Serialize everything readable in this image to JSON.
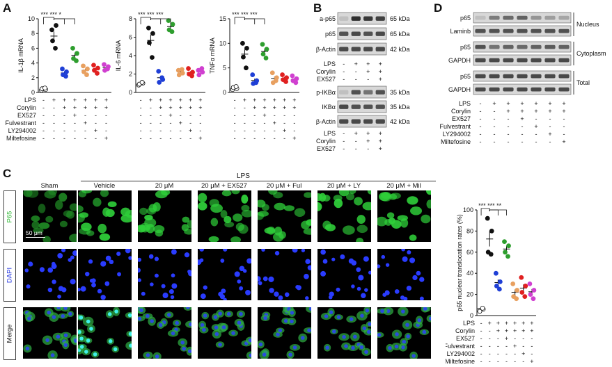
{
  "panels": {
    "A": "A",
    "B": "B",
    "C": "C",
    "D": "D"
  },
  "panelA": {
    "treat_rows": [
      "LPS",
      "Corylin",
      "EX527",
      "Fulvestrant",
      "LY294002",
      "Miltefosine"
    ],
    "treat_signs": [
      [
        "-",
        "+",
        "+",
        "+",
        "+",
        "+",
        "+"
      ],
      [
        "-",
        "-",
        "+",
        "+",
        "+",
        "+",
        "+"
      ],
      [
        "-",
        "-",
        "-",
        "+",
        "-",
        "-",
        "-"
      ],
      [
        "-",
        "-",
        "-",
        "-",
        "+",
        "-",
        "-"
      ],
      [
        "-",
        "-",
        "-",
        "-",
        "-",
        "+",
        "-"
      ],
      [
        "-",
        "-",
        "-",
        "-",
        "-",
        "-",
        "+"
      ]
    ],
    "charts": [
      {
        "ylabel": "IL-1β mRNA",
        "yticks": [
          "0",
          "2",
          "4",
          "6",
          "8",
          "10"
        ],
        "sig": "*** *** *"
      },
      {
        "ylabel": "IL-6 mRNA",
        "yticks": [
          "0",
          "2",
          "4",
          "6",
          "8"
        ],
        "sig": "*** *** ***"
      },
      {
        "ylabel": "TNFα mRNA",
        "yticks": [
          "0",
          "5",
          "10",
          "15"
        ],
        "sig": "*** *** ***"
      }
    ]
  },
  "chart_data": [
    {
      "type": "scatter",
      "ylabel": "IL-1β mRNA",
      "ylim": [
        0,
        10
      ],
      "series": [
        {
          "values": [
            0.3,
            0.4,
            0.5,
            0.6
          ],
          "color": "#ffffff"
        },
        {
          "values": [
            8.5,
            9.1,
            7.0,
            6.0
          ],
          "color": "#111111"
        },
        {
          "values": [
            3.2,
            2.8,
            2.4,
            2.2
          ],
          "color": "#1f3fd6"
        },
        {
          "values": [
            6.0,
            5.3,
            4.6,
            4.3
          ],
          "color": "#2e9e2e"
        },
        {
          "values": [
            3.6,
            3.2,
            2.8,
            2.4
          ],
          "color": "#e8a060"
        },
        {
          "values": [
            3.7,
            3.3,
            3.0,
            2.6
          ],
          "color": "#e02020"
        },
        {
          "values": [
            3.8,
            3.5,
            3.0,
            3.2
          ],
          "color": "#d040d0"
        }
      ]
    },
    {
      "type": "scatter",
      "ylabel": "IL-6 mRNA",
      "ylim": [
        0,
        8
      ],
      "series": [
        {
          "values": [
            0.8,
            1.0,
            0.9,
            1.1
          ],
          "color": "#ffffff"
        },
        {
          "values": [
            7.0,
            6.4,
            5.4,
            3.8
          ],
          "color": "#111111"
        },
        {
          "values": [
            2.3,
            1.4,
            1.1,
            1.6
          ],
          "color": "#1f3fd6"
        },
        {
          "values": [
            7.8,
            7.4,
            6.8,
            6.6
          ],
          "color": "#2e9e2e"
        },
        {
          "values": [
            2.4,
            2.1,
            1.9,
            2.5
          ],
          "color": "#e8a060"
        },
        {
          "values": [
            2.6,
            2.2,
            2.0,
            1.8
          ],
          "color": "#e02020"
        },
        {
          "values": [
            2.4,
            2.2,
            1.9,
            2.6
          ],
          "color": "#d040d0"
        }
      ]
    },
    {
      "type": "scatter",
      "ylabel": "TNFα mRNA",
      "ylim": [
        0,
        15
      ],
      "series": [
        {
          "values": [
            0.6,
            0.8,
            1.0,
            1.2
          ],
          "color": "#ffffff"
        },
        {
          "values": [
            10.0,
            9.0,
            7.2,
            5.0
          ],
          "color": "#111111"
        },
        {
          "values": [
            3.6,
            2.4,
            1.8,
            2.0
          ],
          "color": "#1f3fd6"
        },
        {
          "values": [
            9.8,
            8.8,
            7.8,
            7.0
          ],
          "color": "#2e9e2e"
        },
        {
          "values": [
            4.0,
            3.0,
            2.0,
            2.4
          ],
          "color": "#e8a060"
        },
        {
          "values": [
            3.6,
            3.0,
            2.6,
            2.2
          ],
          "color": "#e02020"
        },
        {
          "values": [
            3.4,
            2.8,
            2.4,
            2.0
          ],
          "color": "#d040d0"
        }
      ]
    },
    {
      "type": "scatter",
      "ylabel": "p65 nuclear translocation rates (%)",
      "ylim": [
        0,
        100
      ],
      "yticks": [
        "0",
        "20",
        "40",
        "60",
        "80",
        "100"
      ],
      "sig": "*** *** **",
      "series": [
        {
          "values": [
            5,
            6,
            4,
            7
          ],
          "color": "#ffffff"
        },
        {
          "values": [
            92,
            80,
            60,
            58
          ],
          "color": "#111111"
        },
        {
          "values": [
            40,
            32,
            28,
            25
          ],
          "color": "#1f3fd6"
        },
        {
          "values": [
            70,
            66,
            60,
            56
          ],
          "color": "#2e9e2e"
        },
        {
          "values": [
            30,
            24,
            18,
            16
          ],
          "color": "#e8a060"
        },
        {
          "values": [
            36,
            28,
            22,
            18
          ],
          "color": "#e02020"
        },
        {
          "values": [
            30,
            24,
            20,
            16
          ],
          "color": "#d040d0"
        }
      ]
    }
  ],
  "panelB": {
    "blot1": [
      {
        "label": "a-p65",
        "kda": "65 kDa"
      },
      {
        "label": "p65",
        "kda": "65 kDa"
      },
      {
        "label": "β-Actin",
        "kda": "42 kDa"
      }
    ],
    "treat1_rows": [
      "LPS",
      "Corylin",
      "EX527"
    ],
    "treat1_signs": [
      [
        "-",
        "+",
        "+",
        "+"
      ],
      [
        "-",
        "-",
        "+",
        "+"
      ],
      [
        "-",
        "-",
        "-",
        "+"
      ]
    ],
    "blot2": [
      {
        "label": "p-IKBα",
        "kda": "35 kDa"
      },
      {
        "label": "IKBα",
        "kda": "35 kDa"
      },
      {
        "label": "β-Actin",
        "kda": "42 kDa"
      }
    ],
    "treat2_rows": [
      "LPS",
      "Corylin",
      "EX527"
    ],
    "treat2_signs": [
      [
        "-",
        "+",
        "+",
        "+"
      ],
      [
        "-",
        "-",
        "+",
        "+"
      ],
      [
        "-",
        "-",
        "-",
        "+"
      ]
    ]
  },
  "panelD": {
    "blots": [
      {
        "label": "p65"
      },
      {
        "label": "Laminb"
      },
      {
        "label": "p65"
      },
      {
        "label": "GAPDH"
      },
      {
        "label": "p65"
      },
      {
        "label": "GAPDH"
      }
    ],
    "groups": [
      "Nucleus",
      "Cytoplasm",
      "Total"
    ],
    "treat_rows": [
      "LPS",
      "Corylin",
      "EX527",
      "Fulvestrant",
      "LY294002",
      "Miltefosine"
    ],
    "treat_signs": [
      [
        "-",
        "+",
        "+",
        "+",
        "+",
        "+",
        "+"
      ],
      [
        "-",
        "-",
        "+",
        "+",
        "+",
        "+",
        "+"
      ],
      [
        "-",
        "-",
        "-",
        "+",
        "-",
        "-",
        "-"
      ],
      [
        "-",
        "-",
        "-",
        "-",
        "+",
        "-",
        "-"
      ],
      [
        "-",
        "-",
        "-",
        "-",
        "-",
        "+",
        "-"
      ],
      [
        "-",
        "-",
        "-",
        "-",
        "-",
        "-",
        "+"
      ]
    ]
  },
  "panelC": {
    "lps_label": "LPS",
    "columns": [
      "Sham",
      "Vehicle",
      "20 μM",
      "20 μM + EX527",
      "20 μM + Ful",
      "20 μM + LY",
      "20 μM + Mil"
    ],
    "rows": [
      "P65",
      "DAPI",
      "Merge"
    ],
    "scale_bar": "50 μm",
    "treat_rows": [
      "LPS",
      "Corylin",
      "EX527",
      "Fulvestrant",
      "LY294002",
      "Miltefosine"
    ],
    "treat_signs": [
      [
        "-",
        "+",
        "+",
        "+",
        "+",
        "+",
        "+"
      ],
      [
        "-",
        "-",
        "+",
        "+",
        "+",
        "+",
        "+"
      ],
      [
        "-",
        "-",
        "-",
        "+",
        "-",
        "-",
        "-"
      ],
      [
        "-",
        "-",
        "-",
        "-",
        "+",
        "-",
        "-"
      ],
      [
        "-",
        "-",
        "-",
        "-",
        "-",
        "+",
        "-"
      ],
      [
        "-",
        "-",
        "-",
        "-",
        "-",
        "-",
        "+"
      ]
    ]
  }
}
